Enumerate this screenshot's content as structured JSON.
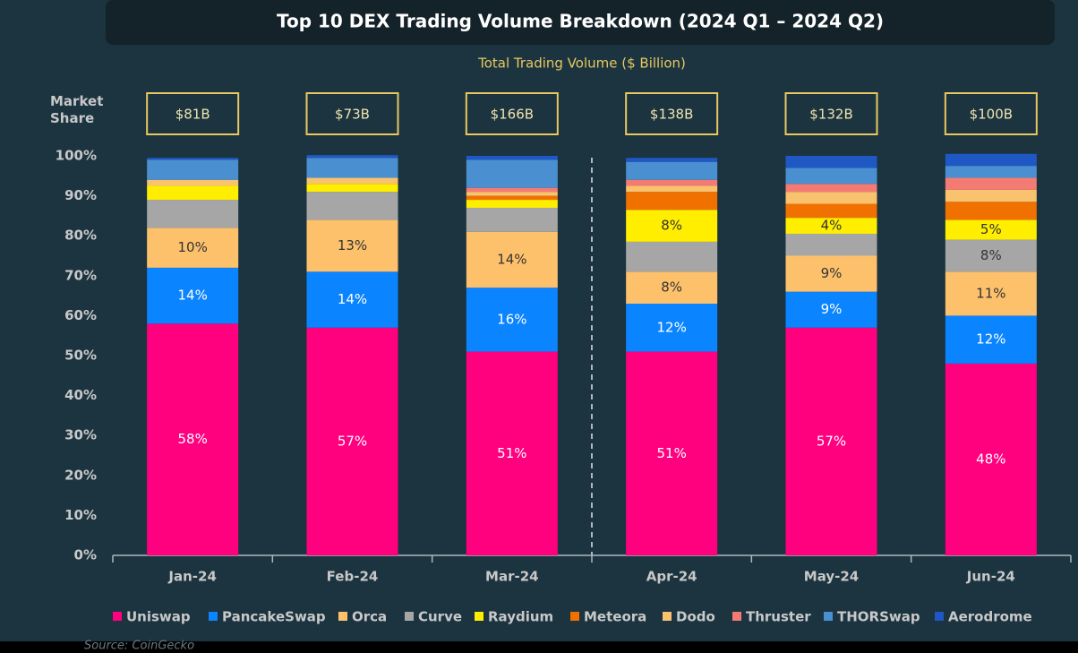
{
  "chart_data": {
    "type": "stacked_bar",
    "title": "Top 10 DEX Trading Volume Breakdown (2024 Q1 – 2024 Q2)",
    "subtitle": "Total Trading Volume ($ Billion)",
    "y_label": "Market Share",
    "source": "Source: CoinGecko",
    "categories": [
      "Jan-24",
      "Feb-24",
      "Mar-24",
      "Apr-24",
      "May-24",
      "Jun-24"
    ],
    "totals": {
      "values": [
        81,
        73,
        166,
        138,
        132,
        100
      ],
      "value_labels": [
        "$81B",
        "$73B",
        "$166B",
        "$138B",
        "$132B",
        "$100B"
      ]
    },
    "ylim": [
      0,
      100
    ],
    "yticks": [
      {
        "value": 0,
        "label": "0%"
      },
      {
        "value": 10,
        "label": "10%"
      },
      {
        "value": 20,
        "label": "20%"
      },
      {
        "value": 30,
        "label": "30%"
      },
      {
        "value": 40,
        "label": "40%"
      },
      {
        "value": 50,
        "label": "50%"
      },
      {
        "value": 60,
        "label": "60%"
      },
      {
        "value": 70,
        "label": "70%"
      },
      {
        "value": 80,
        "label": "80%"
      },
      {
        "value": 90,
        "label": "90%"
      },
      {
        "value": 100,
        "label": "100%"
      }
    ],
    "series": [
      {
        "name": "Uniswap",
        "color": "#ff007f",
        "values": [
          58,
          57,
          51,
          51,
          57,
          48
        ],
        "value_labels": [
          "58%",
          "57%",
          "51%",
          "51%",
          "57%",
          "48%"
        ]
      },
      {
        "name": "PancakeSwap",
        "color": "#0a84ff",
        "values": [
          14,
          14,
          16,
          12,
          9,
          12
        ],
        "value_labels": [
          "14%",
          "14%",
          "16%",
          "12%",
          "9%",
          "12%"
        ]
      },
      {
        "name": "Orca",
        "color": "#fdc16c",
        "values": [
          10,
          13,
          14,
          8,
          9,
          11
        ],
        "value_labels": [
          "10%",
          "13%",
          "14%",
          "8%",
          "9%",
          "11%"
        ]
      },
      {
        "name": "Curve",
        "color": "#a6a6a6",
        "values": [
          7,
          7,
          6,
          7.5,
          5.5,
          8
        ],
        "value_labels": [
          null,
          null,
          null,
          null,
          null,
          "8%"
        ]
      },
      {
        "name": "Raydium",
        "color": "#ffee00",
        "values": [
          3.5,
          2,
          2,
          8,
          4,
          5
        ],
        "value_labels": [
          null,
          null,
          null,
          "8%",
          "4%",
          "5%"
        ]
      },
      {
        "name": "Meteora",
        "color": "#f07000",
        "values": [
          0,
          0,
          1,
          4.5,
          3.5,
          4.5
        ]
      },
      {
        "name": "Dodo",
        "color": "#f9c26e",
        "values": [
          1.5,
          1.5,
          1,
          1.5,
          3,
          3
        ]
      },
      {
        "name": "Thruster",
        "color": "#f47b73",
        "values": [
          0,
          0,
          1,
          1.5,
          2,
          3
        ]
      },
      {
        "name": "THORSwap",
        "color": "#4a8fd0",
        "values": [
          5,
          5,
          7,
          4.5,
          4,
          3
        ]
      },
      {
        "name": "Aerodrome",
        "color": "#1f57c4",
        "values": [
          0.5,
          0.7,
          1,
          1,
          3,
          3
        ]
      }
    ]
  }
}
